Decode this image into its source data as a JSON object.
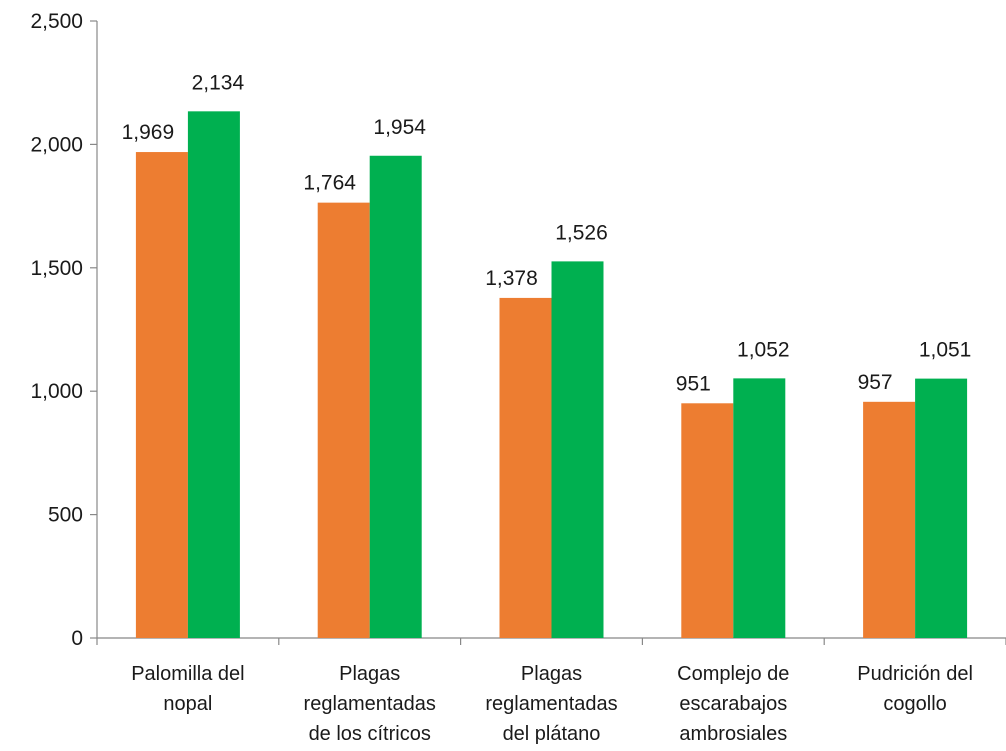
{
  "chart_data": {
    "type": "bar",
    "categories": [
      [
        "Palomilla del",
        "nopal"
      ],
      [
        "Plagas",
        "reglamentadas",
        "de los cítricos"
      ],
      [
        "Plagas",
        "reglamentadas",
        "del plátano"
      ],
      [
        "Complejo de",
        "escarabajos",
        "ambrosiales"
      ],
      [
        "Pudrición del",
        "cogollo"
      ]
    ],
    "series": [
      {
        "color": "#ED7D31",
        "values": [
          1969,
          1764,
          1378,
          951,
          957
        ],
        "labels": [
          "1,969",
          "1,764",
          "1,378",
          "951",
          "957"
        ]
      },
      {
        "color": "#00B050",
        "values": [
          2134,
          1954,
          1526,
          1052,
          1051
        ],
        "labels": [
          "2,134",
          "1,954",
          "1,526",
          "1,052",
          "1,051"
        ]
      }
    ],
    "ylim": [
      0,
      2500
    ],
    "yticks": [
      0,
      500,
      1000,
      1500,
      2000,
      2500
    ],
    "ytick_labels": [
      "0",
      "500",
      "1,000",
      "1,500",
      "2,000",
      "2,500"
    ],
    "grid": false,
    "legend": "none",
    "title": "",
    "xlabel": "",
    "ylabel": ""
  }
}
